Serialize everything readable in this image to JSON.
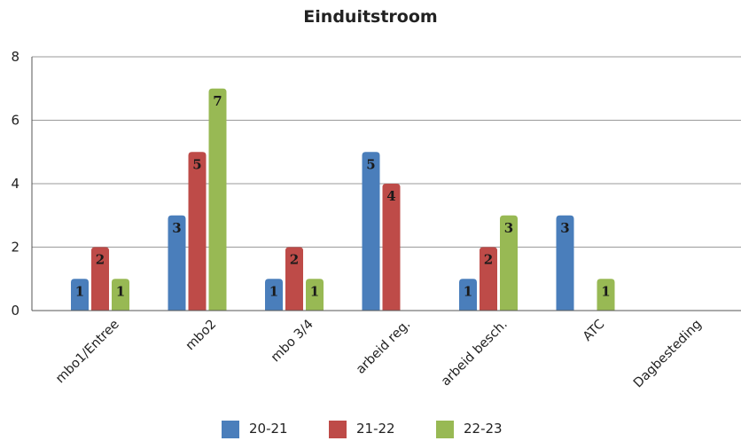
{
  "chart_data": {
    "type": "bar",
    "title": "Einduitstroom",
    "xlabel": "",
    "ylabel": "",
    "ylim": [
      0,
      8
    ],
    "yticks": [
      0,
      2,
      4,
      6,
      8
    ],
    "grid": true,
    "legend_position": "bottom",
    "categories": [
      "mbo1/Entree",
      "mbo2",
      "mbo 3/4",
      "arbeid reg.",
      "arbeid besch.",
      "ATC",
      "Dagbesteding"
    ],
    "series": [
      {
        "name": "20-21",
        "color": "#4a7ebb",
        "values": [
          1,
          3,
          1,
          5,
          1,
          3,
          null
        ]
      },
      {
        "name": "21-22",
        "color": "#be4b48",
        "values": [
          2,
          5,
          2,
          4,
          2,
          null,
          null
        ]
      },
      {
        "name": "22-23",
        "color": "#98b954",
        "values": [
          1,
          7,
          1,
          null,
          3,
          1,
          null
        ]
      }
    ]
  }
}
